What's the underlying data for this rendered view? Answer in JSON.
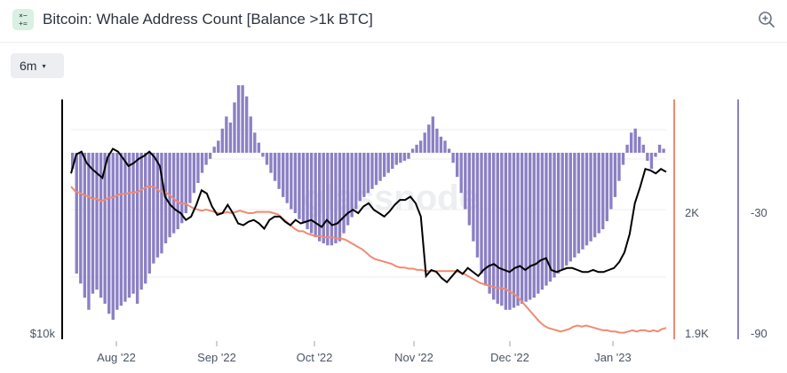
{
  "header": {
    "icon_name": "chart-formula-icon",
    "icon_glyph_top": "×−",
    "icon_glyph_bottom": "+=",
    "title": "Bitcoin: Whale Address Count [Balance >1k BTC]",
    "zoom_icon": "zoom-in-icon"
  },
  "controls": {
    "range_label": "6m",
    "range_caret": "▾"
  },
  "colors": {
    "price_line": "#000000",
    "whale_line": "#f08a72",
    "bars": "#8b80c4",
    "grid": "#eceef1"
  },
  "chart_data": {
    "type": "bar",
    "x_ticks": [
      "Aug '22",
      "Sep '22",
      "Oct '22",
      "Nov '22",
      "Dec '22",
      "Jan '23"
    ],
    "left_axis": {
      "ticks": [
        "$10k"
      ],
      "scale": "log"
    },
    "right_axis_1": {
      "ticks": [
        "2K",
        "1.9K"
      ],
      "ylim": [
        1900,
        2022
      ]
    },
    "right_axis_2": {
      "ticks": [
        "-30",
        "-90"
      ],
      "ylim": [
        -90,
        28
      ]
    },
    "watermark": "glassnode",
    "series": [
      {
        "name": "",
        "type": "bar",
        "axis": "right_axis_2",
        "values": [
          -8,
          -60,
          -65,
          -72,
          -78,
          -70,
          -68,
          -72,
          -75,
          -80,
          -83,
          -78,
          -76,
          -74,
          -72,
          -70,
          -75,
          -68,
          -65,
          -60,
          -55,
          -52,
          -50,
          -45,
          -42,
          -40,
          -38,
          -35,
          -30,
          -25,
          -20,
          -15,
          -10,
          -6,
          -3,
          3,
          6,
          12,
          18,
          15,
          25,
          40,
          55,
          28,
          18,
          10,
          5,
          -2,
          -6,
          -10,
          -14,
          -18,
          -22,
          -25,
          -28,
          -30,
          -33,
          -35,
          -38,
          -40,
          -42,
          -44,
          -45,
          -46,
          -46,
          -45,
          -44,
          -40,
          -36,
          -32,
          -28,
          -24,
          -22,
          -20,
          -18,
          -16,
          -14,
          -12,
          -10,
          -8,
          -6,
          -5,
          -4,
          -3,
          2,
          4,
          6,
          10,
          14,
          18,
          12,
          8,
          6,
          2,
          -5,
          -12,
          -20,
          -28,
          -36,
          -44,
          -52,
          -60,
          -66,
          -70,
          -73,
          -75,
          -76,
          -78,
          -78,
          -77,
          -76,
          -75,
          -74,
          -73,
          -72,
          -70,
          -68,
          -66,
          -64,
          -62,
          -60,
          -58,
          -56,
          -54,
          -52,
          -50,
          -48,
          -46,
          -44,
          -42,
          -40,
          -38,
          -34,
          -28,
          -22,
          -14,
          -6,
          4,
          10,
          12,
          8,
          4,
          -4,
          -8,
          -2,
          4,
          2
        ]
      },
      {
        "name": "",
        "type": "line",
        "axis": "right_axis_1",
        "values": [
          2022,
          2018,
          2017,
          2015,
          2014,
          2012,
          2012,
          2010,
          2011,
          2013,
          2013,
          2015,
          2016,
          2016,
          2017,
          2017,
          2018,
          2020,
          2022,
          2022,
          2021,
          2018,
          2018,
          2016,
          2013,
          2010,
          2008,
          2008,
          2006,
          2004,
          2003,
          2002,
          2003,
          2002,
          2001,
          2000,
          2000,
          2001,
          2000,
          2001,
          2002,
          2001,
          2000,
          2000,
          2001,
          2001,
          2001,
          2001,
          2000,
          1999,
          1996,
          1993,
          1990,
          1987,
          1985,
          1985,
          1983,
          1982,
          1981,
          1981,
          1980,
          1980,
          1980,
          1979,
          1979,
          1978,
          1976,
          1974,
          1972,
          1970,
          1967,
          1964,
          1962,
          1961,
          1960,
          1959,
          1958,
          1956,
          1955,
          1955,
          1954,
          1954,
          1953,
          1953,
          1952,
          1952,
          1952,
          1952,
          1952,
          1952,
          1952,
          1952,
          1951,
          1950,
          1948,
          1946,
          1944,
          1942,
          1941,
          1940,
          1939,
          1938,
          1938,
          1937,
          1935,
          1933,
          1930,
          1926,
          1922,
          1918,
          1914,
          1910,
          1907,
          1905,
          1904,
          1903,
          1902,
          1903,
          1904,
          1906,
          1907,
          1906,
          1907,
          1906,
          1905,
          1904,
          1903,
          1903,
          1902,
          1902,
          1901,
          1901,
          1902,
          1903,
          1902,
          1903,
          1903,
          1902,
          1903,
          1902,
          1904,
          1905
        ]
      },
      {
        "name": "",
        "type": "line",
        "axis": "left_axis",
        "values": [
          22.5,
          23.8,
          24.0,
          23.2,
          22.8,
          22.5,
          22.2,
          23.6,
          24.2,
          24.0,
          23.5,
          23.0,
          23.2,
          23.5,
          23.7,
          24.0,
          23.6,
          23.0,
          21.0,
          20.5,
          20.2,
          20.0,
          19.6,
          19.8,
          20.5,
          21.4,
          21.2,
          20.4,
          19.9,
          20.0,
          20.5,
          20.0,
          19.4,
          19.3,
          19.5,
          19.6,
          19.4,
          19.1,
          19.6,
          19.8,
          19.8,
          19.5,
          19.3,
          19.6,
          19.4,
          19.5,
          19.6,
          19.4,
          19.2,
          19.6,
          19.3,
          19.4,
          19.7,
          20.0,
          20.2,
          20.0,
          20.4,
          20.6,
          20.2,
          20.0,
          19.8,
          20.1,
          20.5,
          20.8,
          20.8,
          21.0,
          20.6,
          19.8,
          16.6,
          16.9,
          16.8,
          16.5,
          16.3,
          16.6,
          16.9,
          16.7,
          17.0,
          16.8,
          16.6,
          16.9,
          17.1,
          17.2,
          17.0,
          16.9,
          16.8,
          17.0,
          17.1,
          16.9,
          17.1,
          17.2,
          17.4,
          17.5,
          16.9,
          16.8,
          16.9,
          17.0,
          17.0,
          16.9,
          16.8,
          16.8,
          16.9,
          16.8,
          16.8,
          16.9,
          17.0,
          17.3,
          17.8,
          18.8,
          20.6,
          21.6,
          22.8,
          22.7,
          22.5,
          22.8,
          22.6
        ]
      }
    ]
  }
}
